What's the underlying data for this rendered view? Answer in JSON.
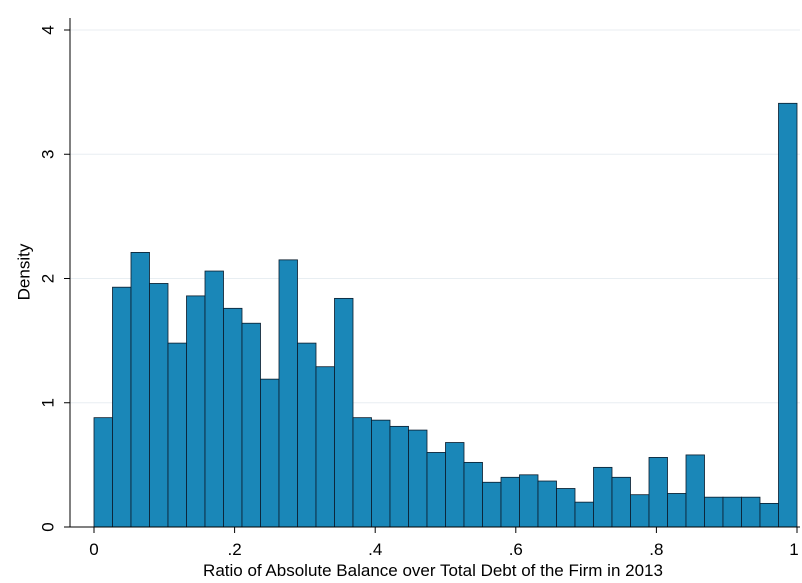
{
  "chart_data": {
    "type": "bar",
    "subtype": "histogram",
    "title": "",
    "xlabel": "Ratio of Absolute Balance over Total Debt of the Firm in 2013",
    "ylabel": "Density",
    "xlim": [
      0,
      1
    ],
    "ylim": [
      0,
      4
    ],
    "x_ticks": [
      "0",
      ".2",
      ".4",
      ".6",
      ".8",
      "1"
    ],
    "y_ticks": [
      "0",
      "1",
      "2",
      "3",
      "4"
    ],
    "grid": "horizontal",
    "bin_width": 0.02632,
    "bin_start": 0,
    "values": [
      0.88,
      1.93,
      2.21,
      1.96,
      1.48,
      1.86,
      2.06,
      1.76,
      1.64,
      1.19,
      2.15,
      1.48,
      1.29,
      1.84,
      0.88,
      0.86,
      0.81,
      0.78,
      0.6,
      0.68,
      0.52,
      0.36,
      0.4,
      0.42,
      0.37,
      0.31,
      0.2,
      0.48,
      0.4,
      0.26,
      0.56,
      0.27,
      0.58,
      0.24,
      0.24,
      0.24,
      0.19,
      3.41
    ],
    "bar_color": "#1a87b8",
    "edge_color": "#0a1b2b",
    "grid_color": "#e8eef2"
  }
}
